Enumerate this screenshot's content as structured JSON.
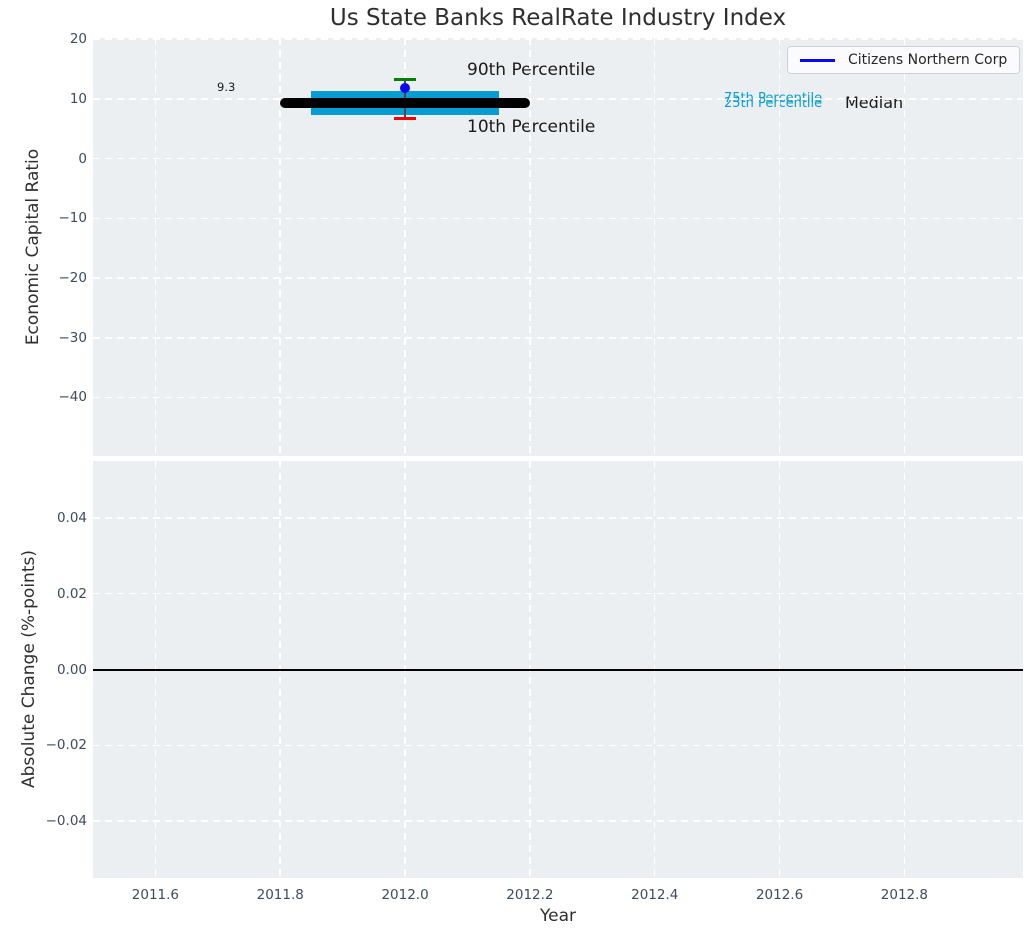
{
  "figure": {
    "title": "Us State Banks RealRate Industry Index"
  },
  "legend": {
    "label": "Citizens Northern Corp",
    "line_color": "#0a0af0",
    "position": "upper right"
  },
  "annotations": {
    "median_value": "9.3",
    "p90_label": "90th Percentile",
    "p10_label": "10th Percentile",
    "p75_label": "75th Percentile",
    "p25_label": "25th Percentile",
    "median_label": "Median"
  },
  "colors": {
    "figure_background": "#ffffff",
    "plot_background": "#eceff1",
    "grid": "#ffffff",
    "tick_label": "#3d4c5c",
    "title_text": "#2e2e2e",
    "iqr_box": "#089dd2",
    "median_line": "#000000",
    "p90_cap": "#008000",
    "p10_cap": "#f50000",
    "whisker": "#4a4a4a",
    "company_marker": "#0a0af0",
    "percentile_text": "#0a9ed3",
    "zero_line": "#000000"
  },
  "chart_data": [
    {
      "type": "box-whisker",
      "title": "Us State Banks RealRate Industry Index",
      "ylabel": "Economic Capital Ratio",
      "xlim": [
        2011.5,
        2012.99
      ],
      "ylim": [
        -49.8,
        20.2
      ],
      "grid": "white dashed on light gray",
      "legend_position": "upper right",
      "yticks": [
        {
          "value": 20,
          "label": "20"
        },
        {
          "value": 10,
          "label": "10"
        },
        {
          "value": 0,
          "label": "0"
        },
        {
          "value": -10,
          "label": "−10"
        },
        {
          "value": -20,
          "label": "−20"
        },
        {
          "value": -30,
          "label": "−30"
        },
        {
          "value": -40,
          "label": "−40"
        }
      ],
      "series": [
        {
          "name": "Citizens Northern Corp",
          "color": "#0a0af0",
          "points": [
            {
              "x": 2012.0,
              "y": 11.9
            }
          ]
        }
      ],
      "industry_distribution": {
        "x_center": 2012.0,
        "median": 9.3,
        "median_span": [
          2011.8,
          2012.2
        ],
        "p75": 11.35,
        "p25": 7.35,
        "box_span": [
          2011.85,
          2012.15
        ],
        "p90": 13.2,
        "p10": 6.7
      }
    },
    {
      "type": "line",
      "ylabel": "Absolute Change (%-points)",
      "xlabel": "Year",
      "xlim": [
        2011.5,
        2012.99
      ],
      "ylim": [
        -0.055,
        0.055
      ],
      "grid": "white dashed on light gray",
      "zero_line": 0.0,
      "yticks": [
        {
          "value": 0.04,
          "label": "0.04"
        },
        {
          "value": 0.02,
          "label": "0.02"
        },
        {
          "value": 0.0,
          "label": "0.00"
        },
        {
          "value": -0.02,
          "label": "−0.02"
        },
        {
          "value": -0.04,
          "label": "−0.04"
        }
      ],
      "xticks": [
        {
          "value": 2011.6,
          "label": "2011.6"
        },
        {
          "value": 2011.8,
          "label": "2011.8"
        },
        {
          "value": 2012.0,
          "label": "2012.0"
        },
        {
          "value": 2012.2,
          "label": "2012.2"
        },
        {
          "value": 2012.4,
          "label": "2012.4"
        },
        {
          "value": 2012.6,
          "label": "2012.6"
        },
        {
          "value": 2012.8,
          "label": "2012.8"
        }
      ],
      "series": []
    }
  ]
}
